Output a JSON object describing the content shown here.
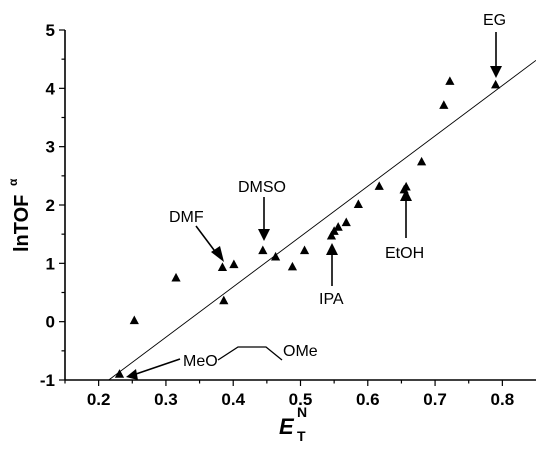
{
  "chart_data": {
    "type": "scatter",
    "xlabel": "E",
    "xlabel_sub": "T",
    "xlabel_sup": "N",
    "ylabel": "lnTOF",
    "ylabel_sup": "α",
    "xlim": [
      0.15,
      0.85
    ],
    "ylim": [
      -1,
      5
    ],
    "xticks": [
      0.2,
      0.3,
      0.4,
      0.5,
      0.6,
      0.7,
      0.8
    ],
    "yticks": [
      -1,
      0,
      1,
      2,
      3,
      4,
      5
    ],
    "xtick_labels": [
      "0.2",
      "0.3",
      "0.4",
      "0.5",
      "0.6",
      "0.7",
      "0.8"
    ],
    "ytick_labels": [
      "-1",
      "0",
      "1",
      "2",
      "3",
      "4",
      "5"
    ],
    "grid": false,
    "legend": "none",
    "marker": "triangle",
    "points": [
      {
        "x": 0.231,
        "y": -0.9
      },
      {
        "x": 0.253,
        "y": 0.02
      },
      {
        "x": 0.315,
        "y": 0.75
      },
      {
        "x": 0.384,
        "y": 0.93
      },
      {
        "x": 0.386,
        "y": 0.36
      },
      {
        "x": 0.401,
        "y": 0.98
      },
      {
        "x": 0.444,
        "y": 1.22
      },
      {
        "x": 0.463,
        "y": 1.11
      },
      {
        "x": 0.488,
        "y": 0.94
      },
      {
        "x": 0.506,
        "y": 1.22
      },
      {
        "x": 0.546,
        "y": 1.47
      },
      {
        "x": 0.55,
        "y": 1.55
      },
      {
        "x": 0.556,
        "y": 1.62
      },
      {
        "x": 0.568,
        "y": 1.7
      },
      {
        "x": 0.586,
        "y": 2.01
      },
      {
        "x": 0.617,
        "y": 2.32
      },
      {
        "x": 0.654,
        "y": 2.26
      },
      {
        "x": 0.657,
        "y": 2.31
      },
      {
        "x": 0.68,
        "y": 2.74
      },
      {
        "x": 0.713,
        "y": 3.71
      },
      {
        "x": 0.722,
        "y": 4.12
      },
      {
        "x": 0.79,
        "y": 4.06
      }
    ],
    "fit_line": {
      "x1": 0.215,
      "y1": -1.0,
      "x2": 0.85,
      "y2": 4.48
    },
    "annotations": [
      {
        "text": "EG",
        "x": 0.79,
        "y": 4.06
      },
      {
        "text": "DMSO",
        "x": 0.444,
        "y": 1.22
      },
      {
        "text": "DMF",
        "x": 0.386,
        "y": 0.93
      },
      {
        "text": "IPA",
        "x": 0.548,
        "y": 1.47
      },
      {
        "text": "EtOH",
        "x": 0.655,
        "y": 2.28
      },
      {
        "text": "MeO",
        "x": 0.231,
        "y": -0.9
      },
      {
        "text": "OMe",
        "x": 0.231,
        "y": -0.9
      }
    ]
  }
}
